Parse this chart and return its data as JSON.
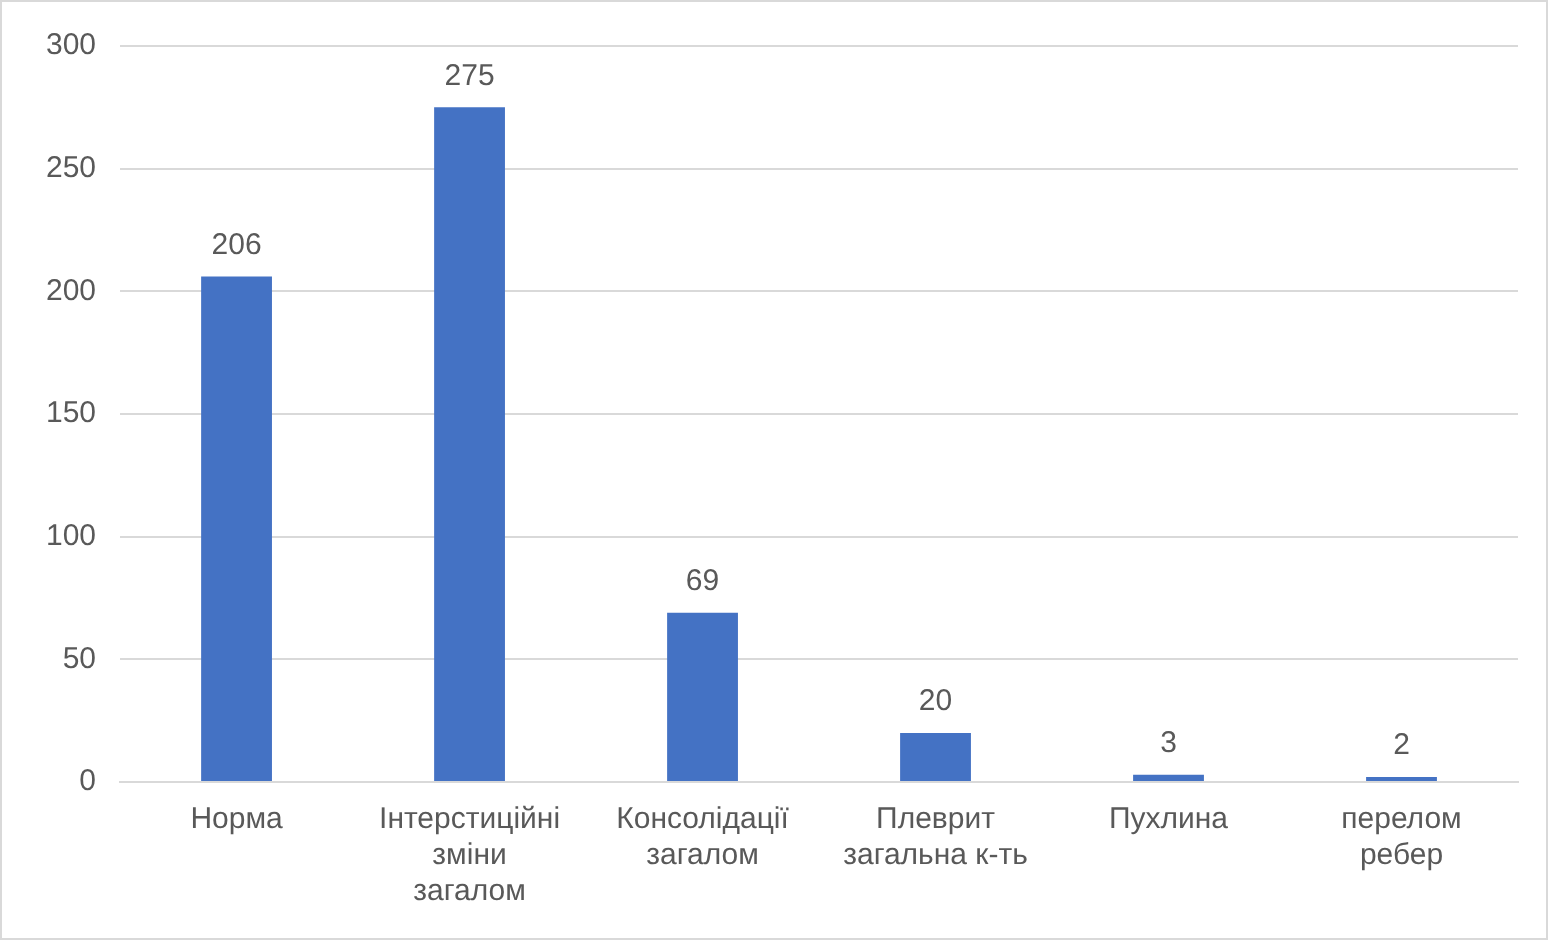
{
  "chart_data": {
    "type": "bar",
    "categories": [
      "Норма",
      "Інтерстиційні зміни загалом",
      "Консолідації загалом",
      "Плеврит загальна к-ть",
      "Пухлина",
      "перелом ребер"
    ],
    "values": [
      206,
      275,
      69,
      20,
      3,
      2
    ],
    "color": "#4472c4",
    "ylim": [
      0,
      300
    ],
    "yticks": [
      0,
      50,
      100,
      150,
      200,
      250,
      300
    ],
    "grid": "y",
    "data_labels": true,
    "legend": false
  }
}
